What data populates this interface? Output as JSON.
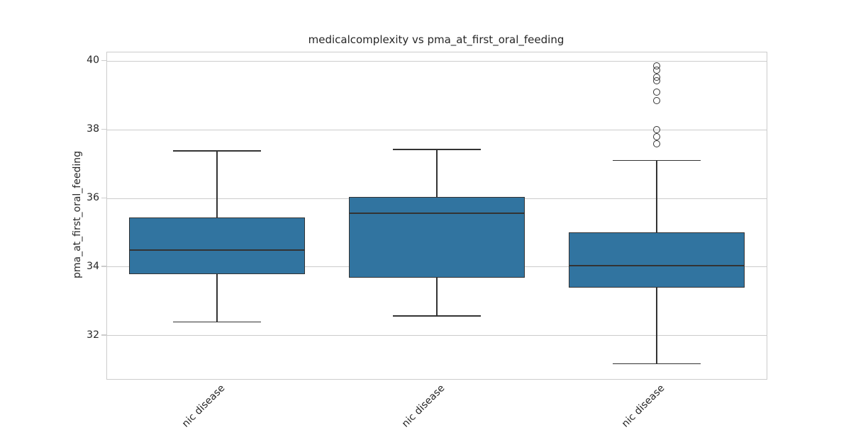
{
  "figure": {
    "title": "medicalcomplexity vs pma_at_first_oral_feeding",
    "y_axis_label": "pma_at_first_oral_feeding"
  },
  "chart_data": {
    "type": "box",
    "title": "medicalcomplexity vs pma_at_first_oral_feeding",
    "xlabel": "",
    "ylabel": "pma_at_first_oral_feeding",
    "ylim": [
      30.74,
      40.25
    ],
    "yticks": [
      32,
      34,
      36,
      38,
      40
    ],
    "grid": "horizontal",
    "legend": "none",
    "x_tick_rotation_deg": 45,
    "categories": [
      "nic disease",
      "nic disease",
      "nic disease"
    ],
    "categories_note": "labels clipped by image bottom edge; only trailing fragment visible",
    "series": [
      {
        "label": "nic disease",
        "whisker_low": 32.4,
        "q1": 33.8,
        "median": 34.5,
        "q3": 35.45,
        "whisker_high": 37.38,
        "outliers": []
      },
      {
        "label": "nic disease",
        "whisker_low": 32.58,
        "q1": 33.7,
        "median": 35.57,
        "q3": 36.05,
        "whisker_high": 37.42,
        "outliers": []
      },
      {
        "label": "nic disease",
        "whisker_low": 31.18,
        "q1": 33.4,
        "median": 34.05,
        "q3": 35.0,
        "whisker_high": 37.1,
        "outliers": [
          39.85,
          39.74,
          39.52,
          39.42,
          39.1,
          38.84,
          38.0,
          37.79,
          37.58
        ]
      }
    ],
    "colors": {
      "box_fill": "#3174A0",
      "box_line": "#333333",
      "grid": "#cccccc",
      "axis_border": "#cccccc",
      "text": "#262626"
    }
  }
}
